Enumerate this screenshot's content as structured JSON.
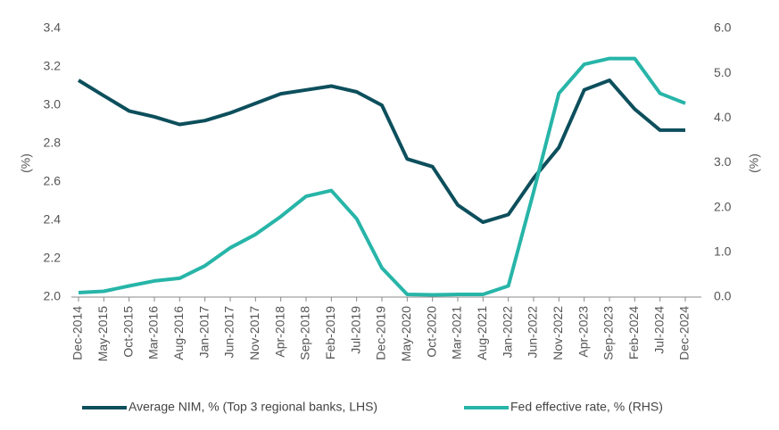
{
  "chart_data": {
    "type": "line",
    "categories": [
      "Dec-2014",
      "May-2015",
      "Oct-2015",
      "Mar-2016",
      "Aug-2016",
      "Jan-2017",
      "Jun-2017",
      "Nov-2017",
      "Apr-2018",
      "Sep-2018",
      "Feb-2019",
      "Jul-2019",
      "Dec-2019",
      "May-2020",
      "Oct-2020",
      "Mar-2021",
      "Aug-2021",
      "Jan-2022",
      "Jun-2022",
      "Nov-2022",
      "Apr-2023",
      "Sep-2023",
      "Feb-2024",
      "Jul-2024",
      "Dec-2024"
    ],
    "series": [
      {
        "name": "Average NIM, % (Top 3 regional banks, LHS)",
        "color": "#0d4f5c",
        "values": [
          3.13,
          3.05,
          2.97,
          2.94,
          2.9,
          2.92,
          2.96,
          3.01,
          3.06,
          3.08,
          3.1,
          3.07,
          3.0,
          2.72,
          2.68,
          2.48,
          2.39,
          2.43,
          2.62,
          2.78,
          3.08,
          3.13,
          2.98,
          2.87,
          2.87
        ]
      },
      {
        "name": "Fed effective rate, % (RHS)",
        "color": "#27b5a8",
        "axis": "y2",
        "values": [
          0.1,
          0.13,
          0.25,
          0.36,
          0.42,
          0.7,
          1.1,
          1.4,
          1.8,
          2.25,
          2.38,
          1.75,
          0.65,
          0.06,
          0.05,
          0.06,
          0.06,
          0.25,
          2.35,
          4.55,
          5.2,
          5.33,
          5.33,
          4.55,
          4.33
        ]
      }
    ],
    "ylabel": "(%)",
    "y2label": "(%)",
    "ylim": [
      2.0,
      3.4
    ],
    "yticks": [
      {
        "value": 2.0,
        "label": "2.0"
      },
      {
        "value": 2.2,
        "label": "2.2"
      },
      {
        "value": 2.4,
        "label": "2.4"
      },
      {
        "value": 2.6,
        "label": "2.6"
      },
      {
        "value": 2.8,
        "label": "2.8"
      },
      {
        "value": 3.0,
        "label": "3.0"
      },
      {
        "value": 3.2,
        "label": "3.2"
      },
      {
        "value": 3.4,
        "label": "3.4"
      }
    ],
    "y2lim": [
      0,
      6
    ],
    "y2ticks": [
      {
        "value": 0,
        "label": "0.0"
      },
      {
        "value": 1,
        "label": "1.0"
      },
      {
        "value": 2,
        "label": "2.0"
      },
      {
        "value": 3,
        "label": "3.0"
      },
      {
        "value": 4,
        "label": "4.0"
      },
      {
        "value": 5,
        "label": "5.0"
      },
      {
        "value": 6,
        "label": "6.0"
      }
    ],
    "legend": "bottom"
  }
}
